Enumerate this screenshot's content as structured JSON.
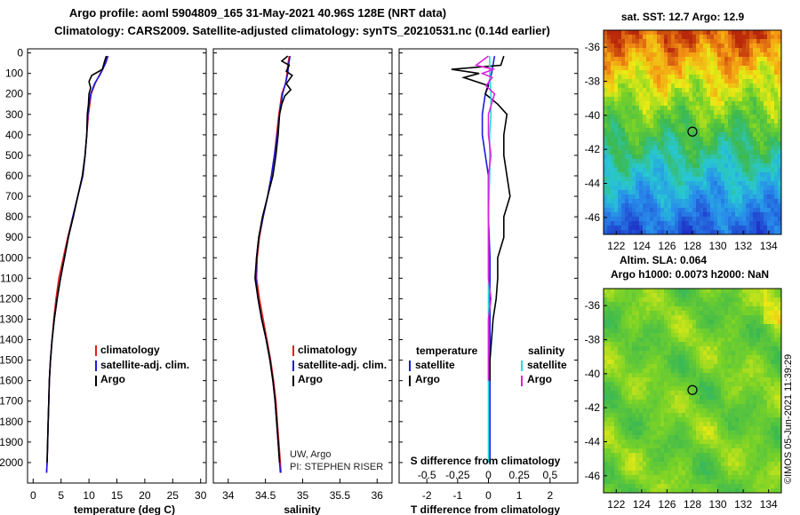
{
  "header": {
    "title1": "Argo profile: aoml 5904809_165 31-May-2021 40.96S 128E (NRT data)",
    "title2": "Climatology: CARS2009. Satellite-adjusted climatology: synTS_20210531.nc (0.14d earlier)"
  },
  "colors": {
    "climatology": "#e0201a",
    "satellite": "#1a1ae0",
    "argo": "#000000",
    "cyan": "#22dddd",
    "magenta": "#dd22dd"
  },
  "depth_axis": {
    "ticks": [
      "0",
      "100",
      "200",
      "300",
      "400",
      "500",
      "600",
      "700",
      "800",
      "900",
      "1000",
      "1100",
      "1200",
      "1300",
      "1400",
      "1500",
      "1600",
      "1700",
      "1800",
      "1900",
      "2000"
    ]
  },
  "chart_data": [
    {
      "type": "line",
      "name": "temperature-profile",
      "xlabel": "temperature (deg C)",
      "xlim": [
        -1,
        31
      ],
      "ylim": [
        2100,
        -20
      ],
      "xticks": [
        "0",
        "5",
        "10",
        "15",
        "20",
        "25",
        "30"
      ],
      "legend": {
        "climatology": "climatology",
        "satellite": "satellite-adj. clim.",
        "argo": "Argo"
      },
      "series": [
        {
          "name": "climatology",
          "color": "red",
          "depth": [
            15,
            50,
            100,
            150,
            200,
            300,
            400,
            500,
            600,
            700,
            800,
            900,
            1000,
            1100,
            1200,
            1300,
            1400,
            1500,
            1600,
            1700,
            1800,
            1900,
            2000,
            2050
          ],
          "values": [
            13.2,
            12.9,
            12.0,
            11.1,
            10.4,
            9.9,
            9.6,
            9.3,
            8.9,
            8.0,
            7.1,
            6.2,
            5.4,
            4.6,
            4.1,
            3.7,
            3.4,
            3.1,
            2.9,
            2.8,
            2.7,
            2.6,
            2.5,
            2.4
          ]
        },
        {
          "name": "satellite",
          "color": "blue",
          "depth": [
            15,
            50,
            100,
            150,
            200,
            300,
            400,
            500,
            600,
            700,
            800,
            900,
            1000,
            1100,
            1200,
            1300,
            1400,
            1500,
            1600,
            1700,
            1800,
            1900,
            2000,
            2050
          ],
          "values": [
            13.4,
            13.0,
            12.1,
            11.0,
            10.3,
            9.8,
            9.6,
            9.3,
            8.9,
            8.0,
            7.1,
            6.3,
            5.6,
            4.9,
            4.3,
            3.8,
            3.4,
            3.1,
            2.9,
            2.8,
            2.7,
            2.6,
            2.5,
            2.4
          ]
        },
        {
          "name": "argo",
          "color": "black",
          "depth": [
            15,
            40,
            80,
            110,
            140,
            170,
            200,
            250,
            300,
            400,
            500,
            600,
            700,
            800,
            900,
            1000,
            1100,
            1200,
            1300,
            1400,
            1500,
            1600,
            1700,
            1800,
            1900,
            2000
          ],
          "values": [
            13.1,
            12.8,
            12.4,
            10.5,
            10.0,
            10.3,
            10.0,
            9.9,
            9.7,
            9.6,
            9.3,
            8.8,
            8.0,
            7.2,
            6.3,
            5.6,
            4.9,
            4.3,
            3.8,
            3.4,
            3.1,
            2.9,
            2.8,
            2.7,
            2.6,
            2.5
          ]
        }
      ]
    },
    {
      "type": "line",
      "name": "salinity-profile",
      "xlabel": "salinity",
      "xlim": [
        33.8,
        36.2
      ],
      "ylim": [
        2100,
        -20
      ],
      "xticks": [
        "34",
        "34.5",
        "35",
        "35.5",
        "36"
      ],
      "legend": {
        "climatology": "climatology",
        "satellite": "satellite-adj. clim.",
        "argo": "Argo"
      },
      "credit": {
        "line1": "UW, Argo",
        "line2": "PI: STEPHEN RISER"
      },
      "series": [
        {
          "name": "climatology",
          "color": "red",
          "depth": [
            15,
            60,
            100,
            150,
            200,
            300,
            400,
            500,
            600,
            700,
            800,
            900,
            1000,
            1100,
            1200,
            1300,
            1400,
            1500,
            1600,
            1700,
            1800,
            1900,
            2000,
            2050
          ],
          "values": [
            34.82,
            34.8,
            34.79,
            34.77,
            34.72,
            34.68,
            34.65,
            34.62,
            34.58,
            34.53,
            34.47,
            34.42,
            34.39,
            34.38,
            34.42,
            34.47,
            34.52,
            34.57,
            34.61,
            34.64,
            34.66,
            34.68,
            34.7,
            34.71
          ]
        },
        {
          "name": "satellite",
          "color": "blue",
          "depth": [
            15,
            60,
            100,
            150,
            200,
            300,
            400,
            500,
            600,
            700,
            800,
            900,
            1000,
            1100,
            1200,
            1300,
            1400,
            1500,
            1600,
            1700,
            1800,
            1900,
            2000,
            2050
          ],
          "values": [
            34.83,
            34.81,
            34.8,
            34.77,
            34.73,
            34.69,
            34.66,
            34.62,
            34.58,
            34.53,
            34.47,
            34.41,
            34.38,
            34.37,
            34.4,
            34.45,
            34.51,
            34.56,
            34.6,
            34.63,
            34.65,
            34.67,
            34.69,
            34.7
          ]
        },
        {
          "name": "argo",
          "color": "black",
          "depth": [
            15,
            40,
            60,
            90,
            110,
            150,
            180,
            210,
            250,
            300,
            400,
            500,
            600,
            700,
            800,
            900,
            1000,
            1100,
            1200,
            1300,
            1400,
            1500,
            1600,
            1700,
            1800,
            1900,
            2000
          ],
          "values": [
            34.8,
            34.72,
            34.82,
            34.78,
            34.86,
            34.78,
            34.84,
            34.76,
            34.72,
            34.69,
            34.67,
            34.64,
            34.6,
            34.53,
            34.46,
            34.41,
            34.38,
            34.36,
            34.4,
            34.45,
            34.51,
            34.56,
            34.6,
            34.63,
            34.65,
            34.67,
            34.69
          ]
        }
      ]
    },
    {
      "type": "line",
      "name": "difference-profile",
      "xlabel": "T difference from climatology",
      "xlabel2": "S difference from climatology",
      "xlim": [
        -2.9,
        2.9
      ],
      "ylim": [
        2100,
        -20
      ],
      "xticks": [
        "-2",
        "-1",
        "0",
        "1",
        "2"
      ],
      "xticks_s": [
        "-0.5",
        "-0.25",
        "0",
        "0.25",
        "0.5"
      ],
      "legend": {
        "temperature": "temperature",
        "salinity": "salinity",
        "t_satellite": "satellite",
        "t_argo": "Argo",
        "s_satellite": "satellite",
        "s_argo": "Argo"
      },
      "series": [
        {
          "name": "temperature-satellite",
          "color": "blue",
          "depth": [
            15,
            100,
            200,
            300,
            400,
            500,
            600,
            700,
            800,
            1000,
            1200,
            1400,
            1600,
            1800,
            2000
          ],
          "values": [
            0.2,
            0.1,
            -0.1,
            -0.2,
            -0.2,
            -0.1,
            0.0,
            0.0,
            0.0,
            0.05,
            0.05,
            0.05,
            0.05,
            0.05,
            0.05
          ]
        },
        {
          "name": "temperature-argo",
          "color": "black",
          "depth": [
            15,
            60,
            80,
            100,
            120,
            160,
            200,
            250,
            300,
            400,
            500,
            600,
            700,
            800,
            900,
            1000,
            1100,
            1200,
            1300,
            1400,
            1500,
            1600
          ],
          "values": [
            0.5,
            0.4,
            -1.2,
            -0.3,
            -0.8,
            0.0,
            -0.1,
            0.3,
            0.6,
            0.5,
            0.5,
            0.6,
            0.7,
            0.5,
            0.5,
            0.3,
            0.3,
            0.25,
            0.15,
            0.1,
            0.05,
            0.05
          ]
        },
        {
          "name": "salinity-satellite",
          "color": "cyan",
          "depth": [
            15,
            100,
            200,
            300,
            400,
            500,
            600,
            700,
            800,
            1000,
            1200,
            1400,
            1600,
            1800,
            2000
          ],
          "values": [
            0.01,
            0.01,
            0.02,
            0.02,
            0.01,
            0.01,
            0.01,
            0.005,
            0.0,
            0.0,
            0.0,
            0.0,
            0.0,
            0.0,
            0.0
          ]
        },
        {
          "name": "salinity-argo",
          "color": "magenta",
          "depth": [
            15,
            60,
            80,
            100,
            120,
            160,
            200,
            300,
            400,
            500,
            600,
            700,
            800,
            900,
            1000,
            1100,
            1200,
            1300,
            1400,
            1500,
            1600
          ],
          "values": [
            0.0,
            -0.1,
            0.04,
            -0.05,
            0.03,
            -0.02,
            0.05,
            0.0,
            0.0,
            0.02,
            0.0,
            0.0,
            0.0,
            0.0,
            0.0,
            0.0,
            0.02,
            0.0,
            0.0,
            0.0,
            0.0
          ]
        }
      ]
    },
    {
      "type": "heatmap",
      "name": "sst-map",
      "title": "sat. SST: 12.7 Argo: 12.9",
      "xticks": [
        "122",
        "124",
        "126",
        "128",
        "130",
        "132",
        "134"
      ],
      "yticks": [
        "-36",
        "-38",
        "-40",
        "-42",
        "-44",
        "-46"
      ],
      "xlim": [
        121,
        135
      ],
      "ylim": [
        -47,
        -35
      ],
      "marker": {
        "lon": 128,
        "lat": -40.96
      }
    },
    {
      "type": "heatmap",
      "name": "sla-map",
      "title1": "Altim. SLA: 0.064",
      "title2": "Argo h1000: 0.0073 h2000: NaN",
      "xticks": [
        "122",
        "124",
        "126",
        "128",
        "130",
        "132",
        "134"
      ],
      "yticks": [
        "-36",
        "-38",
        "-40",
        "-42",
        "-44",
        "-46"
      ],
      "xlim": [
        121,
        135
      ],
      "ylim": [
        -47,
        -35
      ],
      "marker": {
        "lon": 128,
        "lat": -40.96
      }
    }
  ],
  "footer": {
    "stamp": "©IMOS 05-Jun-2021 11:39:29"
  }
}
